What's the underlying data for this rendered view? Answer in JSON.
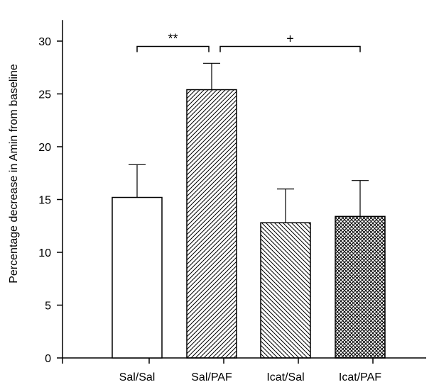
{
  "chart_data": {
    "type": "bar",
    "title": "",
    "xlabel": "",
    "ylabel": "Percentage decrease in Amin from baseline",
    "ylim": [
      0,
      32
    ],
    "yticks": [
      0,
      5,
      10,
      15,
      20,
      25,
      30
    ],
    "grid": false,
    "categories": [
      "Sal/Sal",
      "Sal/PAF",
      "Icat/Sal",
      "Icat/PAF"
    ],
    "values": [
      15.2,
      25.4,
      12.8,
      13.4
    ],
    "error_upper": [
      18.3,
      27.9,
      16.0,
      16.8
    ],
    "fills": [
      "none",
      "diagonal-hatch-forward",
      "diagonal-hatch-backward",
      "crosshatch"
    ],
    "annotations": [
      {
        "label": "**",
        "from_category": "Sal/Sal",
        "to_category": "Sal/PAF",
        "y": 29.5
      },
      {
        "label": "+",
        "from_category": "Sal/PAF",
        "to_category": "Icat/PAF",
        "y": 29.5
      }
    ]
  }
}
